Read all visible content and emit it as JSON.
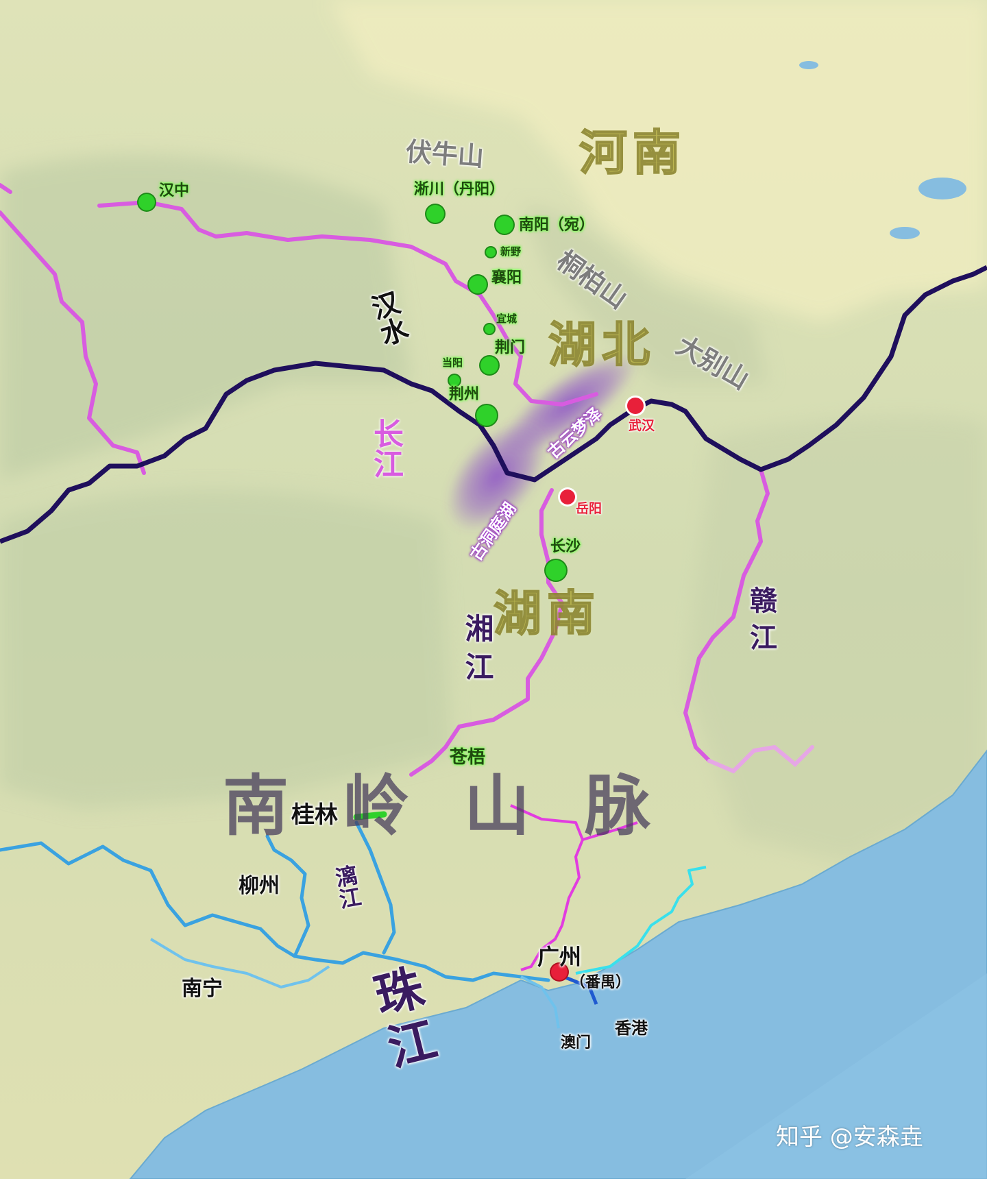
{
  "map": {
    "provinces": [
      "河南",
      "湖北",
      "湖南"
    ],
    "mountains": [
      "伏牛山",
      "桐柏山",
      "大别山"
    ],
    "nanling": "南岭山脉",
    "lakes": [
      "古云梦泽",
      "古洞庭湖"
    ],
    "rivers": {
      "han": "汉水",
      "changjiang": "长江",
      "xiang": "湘江",
      "gan": "赣江",
      "li": "漓江",
      "zhu": "珠江"
    },
    "cities_green": [
      "汉中",
      "淅川（丹阳）",
      "南阳（宛）",
      "新野",
      "襄阳",
      "宜城",
      "荆门",
      "当阳",
      "荆州",
      "长沙",
      "苍梧",
      "桂林"
    ],
    "cities_red": [
      "武汉",
      "岳阳"
    ],
    "cities_plain": [
      "柳州",
      "南宁",
      "广州",
      "（番禺）",
      "香港",
      "澳门"
    ],
    "watermark": "知乎 @安森垚"
  },
  "colors": {
    "land": "#e9e5b6",
    "sea": "#86bde0",
    "upper_river": "#d85ce0",
    "yangtze": "#1f0f5c",
    "pearl_river": "#3aa2e0",
    "lake_glow": "#8a4cc8",
    "green_dot": "#2fd12a",
    "red_dot": "#e8203a"
  }
}
